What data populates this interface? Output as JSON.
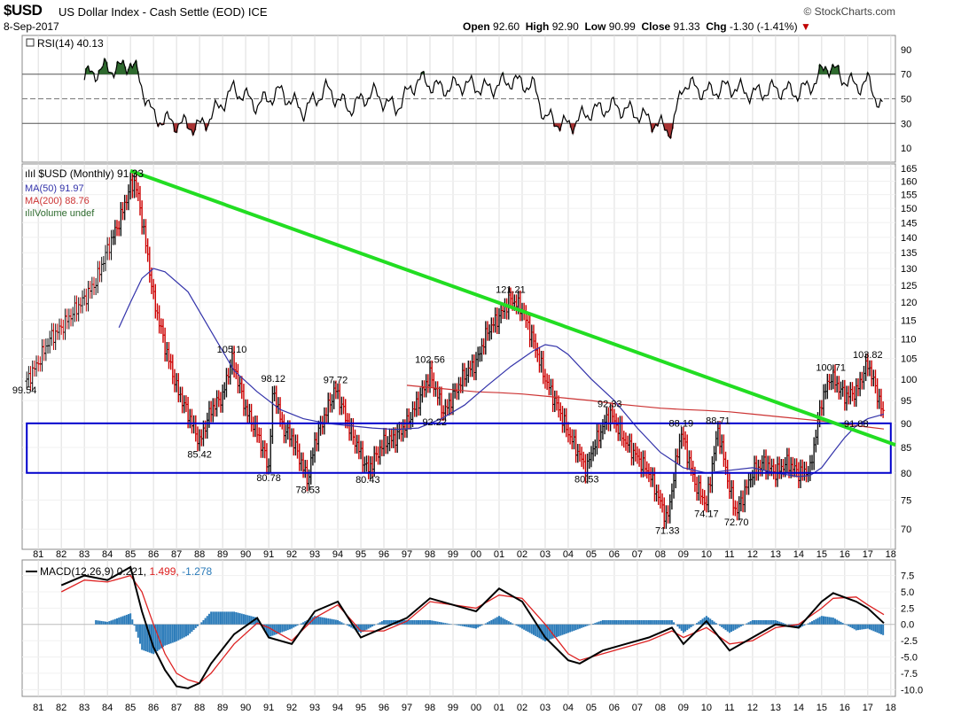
{
  "header": {
    "symbol": "$USD",
    "description": "US Dollar Index - Cash Settle (EOD)",
    "exchange": "ICE",
    "date": "8-Sep-2017",
    "brand": "© StockCharts.com",
    "open_label": "Open",
    "open": "92.60",
    "high_label": "High",
    "high": "92.90",
    "low_label": "Low",
    "low": "90.99",
    "close_label": "Close",
    "close": "91.33",
    "chg_label": "Chg",
    "chg": "-1.30 (-1.41%)",
    "chg_arrow": "▼"
  },
  "colors": {
    "price_bar": "#111111",
    "price_bar_down": "#cc0000",
    "ma50": "#3333aa",
    "ma200": "#cc3333",
    "trendline": "#22dd22",
    "box": "#0000cc",
    "rsi_line": "#000000",
    "rsi_fill": "#2e6b2e",
    "rsi_fill_low": "#aa3333",
    "macd": "#000000",
    "signal": "#dd2222",
    "histogram": "#2b7bb9",
    "grid": "#dddddd"
  },
  "rsi_panel": {
    "legend": "RSI(14) 40.13",
    "ticks": [
      "90",
      "70",
      "50",
      "30",
      "10"
    ],
    "overbought": 70,
    "oversold": 30
  },
  "price_panel": {
    "legend_main": "$USD (Monthly) 91.33",
    "legend_ma50": "MA(50) 91.97",
    "legend_ma200": "MA(200) 88.76",
    "legend_volume": "Volume undef",
    "ticks": [
      "165",
      "160",
      "155",
      "150",
      "145",
      "140",
      "135",
      "130",
      "125",
      "120",
      "115",
      "110",
      "105",
      "100",
      "95",
      "90",
      "85",
      "80",
      "75",
      "70"
    ],
    "annotations": [
      {
        "label": "99.54",
        "year": 1980.4,
        "value": 99.54,
        "pos": "below"
      },
      {
        "label": "105.10",
        "year": 1989.4,
        "value": 105.1,
        "pos": "above"
      },
      {
        "label": "85.42",
        "year": 1988.0,
        "value": 85.42,
        "pos": "below"
      },
      {
        "label": "98.12",
        "year": 1991.2,
        "value": 98.12,
        "pos": "above"
      },
      {
        "label": "80.78",
        "year": 1991.0,
        "value": 80.78,
        "pos": "below"
      },
      {
        "label": "78.53",
        "year": 1992.7,
        "value": 78.53,
        "pos": "below"
      },
      {
        "label": "97.72",
        "year": 1993.9,
        "value": 97.72,
        "pos": "above"
      },
      {
        "label": "80.43",
        "year": 1995.3,
        "value": 80.43,
        "pos": "below"
      },
      {
        "label": "102.56",
        "year": 1998.0,
        "value": 102.56,
        "pos": "above"
      },
      {
        "label": "92.22",
        "year": 1998.2,
        "value": 92.22,
        "pos": "below"
      },
      {
        "label": "121.21",
        "year": 2001.5,
        "value": 121.21,
        "pos": "above"
      },
      {
        "label": "92.33",
        "year": 2005.8,
        "value": 92.33,
        "pos": "above"
      },
      {
        "label": "80.53",
        "year": 2004.8,
        "value": 80.53,
        "pos": "below"
      },
      {
        "label": "88.19",
        "year": 2008.9,
        "value": 88.19,
        "pos": "above"
      },
      {
        "label": "88.71",
        "year": 2010.5,
        "value": 88.71,
        "pos": "above"
      },
      {
        "label": "71.33",
        "year": 2008.3,
        "value": 71.33,
        "pos": "below"
      },
      {
        "label": "74.17",
        "year": 2010.0,
        "value": 74.17,
        "pos": "below"
      },
      {
        "label": "72.70",
        "year": 2011.3,
        "value": 72.7,
        "pos": "below"
      },
      {
        "label": "100.71",
        "year": 2015.4,
        "value": 100.71,
        "pos": "above"
      },
      {
        "label": "103.82",
        "year": 2017.0,
        "value": 103.82,
        "pos": "above"
      },
      {
        "label": "91.88",
        "year": 2016.5,
        "value": 91.88,
        "pos": "below"
      }
    ]
  },
  "macd_panel": {
    "legend_prefix": "MACD(12,26,9)",
    "legend_macd": "0.221,",
    "legend_signal": "1.499,",
    "legend_hist": "-1.278",
    "ticks": [
      "7.5",
      "5.0",
      "2.5",
      "0.0",
      "-2.5",
      "-5.0",
      "-7.5",
      "-10.0"
    ]
  },
  "x_axis": {
    "labels": [
      "81",
      "82",
      "83",
      "84",
      "85",
      "86",
      "87",
      "88",
      "89",
      "90",
      "91",
      "92",
      "93",
      "94",
      "95",
      "96",
      "97",
      "98",
      "99",
      "00",
      "01",
      "02",
      "03",
      "04",
      "05",
      "06",
      "07",
      "08",
      "09",
      "10",
      "11",
      "12",
      "13",
      "14",
      "15",
      "16",
      "17",
      "18"
    ]
  },
  "chart_data": {
    "type": "line",
    "title": "$USD US Dollar Index - Cash Settle (EOD)",
    "x_unit": "year",
    "xlim": [
      1980.3,
      2018.2
    ],
    "price_ylim": [
      67,
      166
    ],
    "price_scale": "log",
    "series": [
      {
        "name": "$USD (Monthly)",
        "x": [
          1980.5,
          1981.0,
          1981.5,
          1982.0,
          1982.5,
          1983.0,
          1983.5,
          1984.0,
          1984.5,
          1985.0,
          1985.2,
          1985.5,
          1986.0,
          1986.5,
          1987.0,
          1987.5,
          1988.0,
          1988.5,
          1989.0,
          1989.4,
          1990.0,
          1990.5,
          1991.0,
          1991.2,
          1991.6,
          1992.0,
          1992.7,
          1993.0,
          1993.9,
          1994.5,
          1995.3,
          1996.0,
          1996.5,
          1997.0,
          1997.5,
          1998.0,
          1998.6,
          1999.0,
          1999.5,
          2000.0,
          2000.5,
          2001.0,
          2001.5,
          2002.0,
          2002.5,
          2003.0,
          2003.5,
          2004.0,
          2004.8,
          2005.0,
          2005.8,
          2006.5,
          2007.0,
          2007.5,
          2008.3,
          2008.9,
          2009.5,
          2010.0,
          2010.5,
          2011.0,
          2011.3,
          2012.0,
          2012.5,
          2013.0,
          2013.5,
          2014.0,
          2014.5,
          2015.0,
          2015.4,
          2016.0,
          2016.5,
          2017.0,
          2017.5,
          2017.7
        ],
        "values": [
          99.5,
          104,
          110,
          113,
          117,
          121,
          126,
          136,
          145,
          158,
          160,
          146,
          121,
          108,
          98,
          92,
          86,
          93,
          96,
          105,
          93,
          88,
          81,
          98,
          89,
          87,
          78.5,
          86,
          97.7,
          89,
          80.4,
          86,
          87,
          90,
          95,
          101,
          92.2,
          96,
          101,
          104,
          112,
          116,
          121,
          118,
          109,
          100,
          94,
          88,
          80.5,
          84,
          92.3,
          86,
          83,
          80,
          71.3,
          88.2,
          78,
          74.2,
          88.7,
          77,
          72.7,
          80,
          82,
          80,
          82,
          80,
          80.5,
          95,
          100.7,
          96,
          97,
          103.8,
          95,
          91.3
        ]
      },
      {
        "name": "MA(50)",
        "x": [
          1984.5,
          1985.0,
          1985.5,
          1986.0,
          1986.5,
          1987.5,
          1988.5,
          1989.5,
          1990.5,
          1991.5,
          1992.5,
          1993.5,
          1994.5,
          1995.5,
          1996.5,
          1997.5,
          1998.5,
          1999.5,
          2000.5,
          2001.5,
          2002.5,
          2003.0,
          2003.5,
          2004.0,
          2005.0,
          2006.0,
          2007.0,
          2008.0,
          2009.0,
          2010.0,
          2011.0,
          2012.0,
          2013.0,
          2014.0,
          2014.5,
          2015.0,
          2015.5,
          2016.0,
          2016.5,
          2017.0,
          2017.7
        ],
        "values": [
          113,
          120,
          127,
          130,
          129,
          123,
          112,
          102,
          97,
          93,
          91,
          90,
          89.5,
          89,
          88.7,
          89,
          91,
          94,
          98.5,
          103,
          107,
          108.5,
          108,
          106,
          100,
          95,
          89,
          84,
          81,
          80,
          80.5,
          81,
          80,
          79.3,
          79.5,
          81,
          84,
          87,
          89.5,
          91,
          92
        ]
      },
      {
        "name": "MA(200)",
        "x": [
          1997.0,
          1998.0,
          1999.0,
          2000.0,
          2001.0,
          2002.0,
          2003.0,
          2004.0,
          2005.0,
          2006.0,
          2007.0,
          2008.0,
          2009.0,
          2010.0,
          2011.0,
          2012.0,
          2013.0,
          2014.0,
          2015.0,
          2016.0,
          2017.0,
          2017.7
        ],
        "values": [
          98.5,
          98,
          97.5,
          97,
          96.8,
          96.5,
          96,
          95.5,
          95,
          94.3,
          93.8,
          93.3,
          93,
          92.8,
          92.5,
          92,
          91.5,
          91,
          90.5,
          89.8,
          89.2,
          88.8
        ]
      },
      {
        "name": "RSI(14)",
        "x": [
          1983.0,
          1983.5,
          1984.0,
          1984.5,
          1985.0,
          1985.3,
          1986.0,
          1987.0,
          1988.0,
          1988.5,
          1989.5,
          1990.5,
          1991.5,
          1992.5,
          1993.5,
          1994.5,
          1995.5,
          1996.5,
          1997.5,
          1998.5,
          1999.5,
          2000.5,
          2001.5,
          2002.5,
          2003.0,
          2004.0,
          2005.0,
          2006.0,
          2007.0,
          2008.0,
          2008.5,
          2009.0,
          2010.0,
          2011.0,
          2012.0,
          2013.0,
          2014.0,
          2014.8,
          2015.2,
          2016.0,
          2016.5,
          2017.0,
          2017.7
        ],
        "values": [
          68,
          72,
          75,
          74,
          80,
          70,
          35,
          30,
          27,
          36,
          58,
          45,
          56,
          40,
          58,
          42,
          55,
          42,
          66,
          58,
          62,
          58,
          65,
          60,
          35,
          28,
          40,
          44,
          38,
          28,
          24,
          63,
          55,
          60,
          54,
          58,
          55,
          65,
          78,
          66,
          60,
          64,
          40
        ]
      },
      {
        "name": "MACD",
        "x": [
          1982.0,
          1983.0,
          1984.0,
          1985.0,
          1985.5,
          1986.0,
          1986.5,
          1987.0,
          1987.5,
          1988.0,
          1988.5,
          1989.5,
          1990.5,
          1991.0,
          1992.0,
          1993.0,
          1994.0,
          1995.0,
          1996.0,
          1997.0,
          1998.0,
          1999.0,
          2000.0,
          2001.0,
          2002.0,
          2003.0,
          2004.0,
          2004.5,
          2005.5,
          2006.5,
          2007.5,
          2008.5,
          2009.0,
          2010.0,
          2011.0,
          2012.0,
          2013.0,
          2014.0,
          2015.0,
          2015.5,
          2016.5,
          2017.0,
          2017.7
        ],
        "values": [
          6,
          7.5,
          6.8,
          8.8,
          2,
          -3.5,
          -7,
          -9.5,
          -9.8,
          -9,
          -6,
          -1.5,
          1,
          -2,
          -3,
          2,
          3.5,
          -2,
          -0.5,
          1,
          4,
          3,
          2,
          5.5,
          3.5,
          -2,
          -5.5,
          -6,
          -4,
          -3,
          -2,
          -0.5,
          -3,
          0.5,
          -4,
          -2,
          0,
          -0.5,
          3.5,
          4.8,
          3.5,
          2.5,
          0.2
        ]
      },
      {
        "name": "Signal",
        "x": [
          1982.0,
          1983.0,
          1984.0,
          1985.0,
          1985.5,
          1986.0,
          1986.5,
          1987.0,
          1987.5,
          1988.0,
          1988.5,
          1989.5,
          1990.5,
          1991.0,
          1992.0,
          1993.0,
          1994.0,
          1995.0,
          1996.0,
          1997.0,
          1998.0,
          1999.0,
          2000.0,
          2001.0,
          2002.0,
          2003.0,
          2004.0,
          2004.5,
          2005.5,
          2006.5,
          2007.5,
          2008.5,
          2009.0,
          2010.0,
          2011.0,
          2012.0,
          2013.0,
          2014.0,
          2015.0,
          2015.5,
          2016.5,
          2017.0,
          2017.7
        ],
        "values": [
          5,
          6.8,
          6.5,
          7.5,
          5,
          0,
          -4.5,
          -7.5,
          -8.5,
          -9,
          -7.5,
          -3,
          0.2,
          -0.5,
          -2.5,
          1,
          3,
          -1,
          -1,
          0.5,
          3.5,
          3,
          2.5,
          4.5,
          4,
          0,
          -4.5,
          -5.5,
          -4.5,
          -3.5,
          -2.5,
          -1,
          -2,
          -0.5,
          -3,
          -2.5,
          -0.5,
          0,
          2.5,
          4,
          4.2,
          3,
          1.5
        ]
      }
    ],
    "annotations": {
      "trendline": {
        "from": [
          1985.0,
          164
        ],
        "to": [
          2018.2,
          85.5
        ],
        "color": "#22dd22"
      },
      "support_box": {
        "x_from": 1980.5,
        "x_to": 2018.0,
        "y_from": 80,
        "y_to": 90
      }
    }
  }
}
